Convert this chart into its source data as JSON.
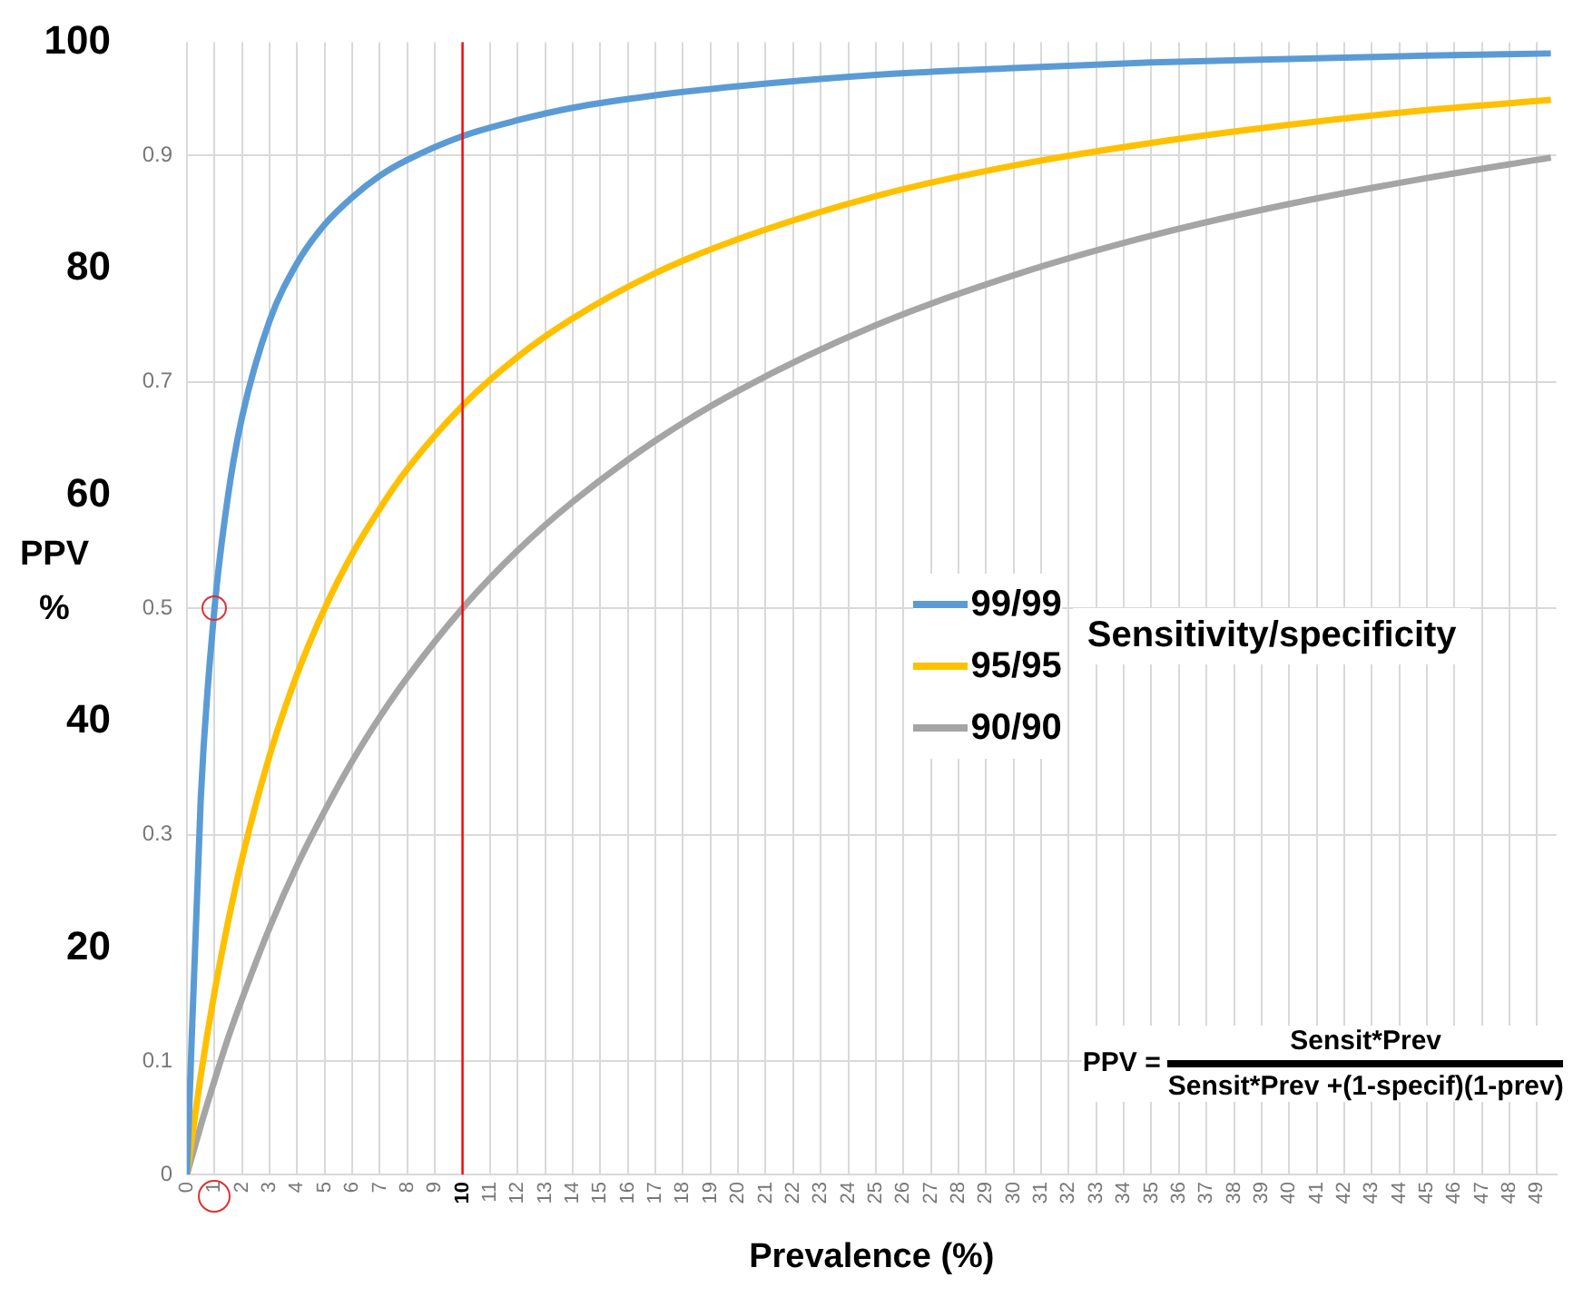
{
  "chart_data": {
    "type": "line",
    "xlabel": "Prevalence (%)",
    "y2label": "PPV %",
    "legend_title": "Sensitivity/specificity",
    "legend": "right",
    "grid": true,
    "marker": "none",
    "line_style": "solid",
    "x": [
      0,
      0.5,
      1,
      1.5,
      2,
      3,
      4,
      5,
      6,
      7,
      8,
      10,
      12,
      14,
      17,
      20,
      25,
      30,
      35,
      40,
      45,
      49.5
    ],
    "series": [
      {
        "name": "99/99",
        "color": "#5b9bd5",
        "values": [
          0,
          0.332,
          0.5,
          0.601,
          0.669,
          0.754,
          0.805,
          0.839,
          0.863,
          0.882,
          0.896,
          0.917,
          0.931,
          0.942,
          0.953,
          0.961,
          0.971,
          0.977,
          0.982,
          0.985,
          0.988,
          0.99
        ]
      },
      {
        "name": "95/95",
        "color": "#ffc000",
        "values": [
          0,
          0.087,
          0.161,
          0.224,
          0.279,
          0.37,
          0.442,
          0.5,
          0.548,
          0.588,
          0.623,
          0.679,
          0.722,
          0.756,
          0.796,
          0.826,
          0.864,
          0.891,
          0.911,
          0.927,
          0.94,
          0.949
        ]
      },
      {
        "name": "90/90",
        "color": "#a5a5a5",
        "values": [
          0,
          0.043,
          0.083,
          0.121,
          0.155,
          0.218,
          0.273,
          0.321,
          0.365,
          0.404,
          0.439,
          0.5,
          0.551,
          0.594,
          0.648,
          0.692,
          0.75,
          0.794,
          0.829,
          0.857,
          0.88,
          0.898
        ]
      }
    ],
    "xlim": [
      0,
      49.7
    ],
    "xticks": [
      0,
      1,
      2,
      3,
      4,
      5,
      6,
      7,
      8,
      9,
      10,
      11,
      12,
      13,
      14,
      15,
      16,
      17,
      18,
      19,
      20,
      21,
      22,
      23,
      24,
      25,
      26,
      27,
      28,
      29,
      30,
      31,
      32,
      33,
      34,
      35,
      36,
      37,
      38,
      39,
      40,
      41,
      42,
      43,
      44,
      45,
      46,
      47,
      48,
      49
    ],
    "ylim": [
      0,
      1
    ],
    "yticks": [
      0,
      0.1,
      0.3,
      0.5,
      0.7,
      0.9
    ],
    "y2lim": [
      0,
      100
    ],
    "y2ticks": [
      20,
      40,
      60,
      80,
      100
    ],
    "ref_lines": [
      {
        "axis": "x",
        "value": 10,
        "color": "#ff0000"
      }
    ],
    "annotations": [
      "PPV =",
      "Sensit*Prev",
      "Sensit*Prev +(1-specif)(1-prev)"
    ]
  }
}
